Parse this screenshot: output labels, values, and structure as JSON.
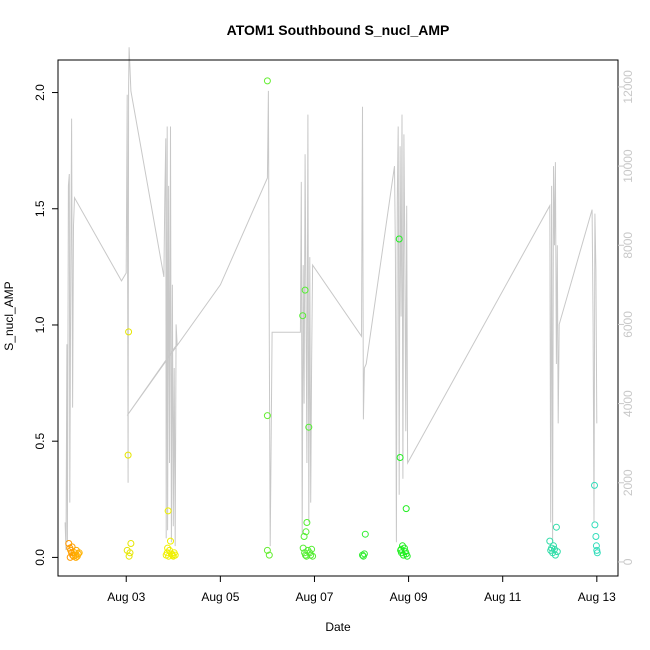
{
  "chart_data": {
    "type": "scatter",
    "title": "ATOM1 Southbound S_nucl_AMP",
    "xlabel": "Date",
    "ylabel": "S_nucl_AMP",
    "x_ticks": [
      "Aug 03",
      "Aug 05",
      "Aug 07",
      "Aug 09",
      "Aug 11",
      "Aug 13"
    ],
    "x_tick_days": [
      3,
      5,
      7,
      9,
      11,
      13
    ],
    "xlim": [
      1.55,
      13.45
    ],
    "ylim": [
      -0.08,
      2.14
    ],
    "y_ticks": [
      0.0,
      0.5,
      1.0,
      1.5,
      2.0
    ],
    "y2lim": [
      -355,
      12680
    ],
    "y2_ticks": [
      0,
      2000,
      4000,
      6000,
      8000,
      10000,
      12000
    ],
    "grid": false,
    "colors": {
      "axis": "#000000",
      "secondary": "#c8c8c8",
      "frame": "#000000"
    },
    "points": [
      {
        "x": 1.78,
        "y": 0.06,
        "c": "#ff9900"
      },
      {
        "x": 1.8,
        "y": 0.04,
        "c": "#ff9900"
      },
      {
        "x": 1.82,
        "y": 0.03,
        "c": "#ffa000"
      },
      {
        "x": 1.84,
        "y": 0.02,
        "c": "#ffa000"
      },
      {
        "x": 1.86,
        "y": 0.01,
        "c": "#ffa000"
      },
      {
        "x": 1.88,
        "y": 0.005,
        "c": "#ffa500"
      },
      {
        "x": 1.9,
        "y": 0.02,
        "c": "#ffa500"
      },
      {
        "x": 1.92,
        "y": 0.01,
        "c": "#ffaa00"
      },
      {
        "x": 1.94,
        "y": 0.03,
        "c": "#ffaa00"
      },
      {
        "x": 1.96,
        "y": 0.005,
        "c": "#ffaf00"
      },
      {
        "x": 1.98,
        "y": 0.015,
        "c": "#ffaf00"
      },
      {
        "x": 2.0,
        "y": 0.02,
        "c": "#ffb400"
      },
      {
        "x": 1.81,
        "y": 0.0,
        "c": "#ff9900"
      },
      {
        "x": 1.85,
        "y": 0.045,
        "c": "#ffa000"
      },
      {
        "x": 1.93,
        "y": 0.0,
        "c": "#ffaa00"
      },
      {
        "x": 3.02,
        "y": 0.03,
        "c": "#e6e600"
      },
      {
        "x": 3.04,
        "y": 0.44,
        "c": "#e6e600"
      },
      {
        "x": 3.05,
        "y": 0.97,
        "c": "#e6e600"
      },
      {
        "x": 3.06,
        "y": 0.005,
        "c": "#e6e600"
      },
      {
        "x": 3.08,
        "y": 0.02,
        "c": "#e6e600"
      },
      {
        "x": 3.1,
        "y": 0.06,
        "c": "#e6e600"
      },
      {
        "x": 3.85,
        "y": 0.01,
        "c": "#f0f000"
      },
      {
        "x": 3.87,
        "y": 0.02,
        "c": "#f0f000"
      },
      {
        "x": 3.89,
        "y": 0.2,
        "c": "#f0f000"
      },
      {
        "x": 3.9,
        "y": 0.005,
        "c": "#f0f000"
      },
      {
        "x": 3.92,
        "y": 0.03,
        "c": "#f0f000"
      },
      {
        "x": 3.94,
        "y": 0.07,
        "c": "#f0f000"
      },
      {
        "x": 3.96,
        "y": 0.015,
        "c": "#f0f000"
      },
      {
        "x": 3.98,
        "y": 0.01,
        "c": "#f0f000"
      },
      {
        "x": 4.0,
        "y": 0.005,
        "c": "#f0f000"
      },
      {
        "x": 4.02,
        "y": 0.02,
        "c": "#f0f000"
      },
      {
        "x": 4.04,
        "y": 0.01,
        "c": "#f0f000"
      },
      {
        "x": 3.88,
        "y": 0.04,
        "c": "#f0f000"
      },
      {
        "x": 6.0,
        "y": 2.05,
        "c": "#66ee33"
      },
      {
        "x": 6.0,
        "y": 0.61,
        "c": "#66ee33"
      },
      {
        "x": 6.0,
        "y": 0.03,
        "c": "#66ee33"
      },
      {
        "x": 6.04,
        "y": 0.01,
        "c": "#66ee33"
      },
      {
        "x": 6.75,
        "y": 1.04,
        "c": "#55ee33"
      },
      {
        "x": 6.8,
        "y": 1.15,
        "c": "#55ee33"
      },
      {
        "x": 6.78,
        "y": 0.09,
        "c": "#55ee33"
      },
      {
        "x": 6.82,
        "y": 0.11,
        "c": "#55ee33"
      },
      {
        "x": 6.84,
        "y": 0.15,
        "c": "#55ee33"
      },
      {
        "x": 6.88,
        "y": 0.56,
        "c": "#55ee33"
      },
      {
        "x": 6.76,
        "y": 0.04,
        "c": "#55ee33"
      },
      {
        "x": 6.79,
        "y": 0.02,
        "c": "#55ee33"
      },
      {
        "x": 6.81,
        "y": 0.01,
        "c": "#55ee33"
      },
      {
        "x": 6.83,
        "y": 0.005,
        "c": "#55ee33"
      },
      {
        "x": 6.86,
        "y": 0.03,
        "c": "#55ee33"
      },
      {
        "x": 6.9,
        "y": 0.02,
        "c": "#55ee33"
      },
      {
        "x": 6.92,
        "y": 0.01,
        "c": "#55ee33"
      },
      {
        "x": 6.94,
        "y": 0.035,
        "c": "#55ee33"
      },
      {
        "x": 6.96,
        "y": 0.005,
        "c": "#55ee33"
      },
      {
        "x": 8.02,
        "y": 0.01,
        "c": "#33ee33"
      },
      {
        "x": 8.04,
        "y": 0.005,
        "c": "#33ee33"
      },
      {
        "x": 8.06,
        "y": 0.015,
        "c": "#33ee33"
      },
      {
        "x": 8.08,
        "y": 0.1,
        "c": "#33ee33"
      },
      {
        "x": 8.8,
        "y": 1.37,
        "c": "#22ee22"
      },
      {
        "x": 8.82,
        "y": 0.43,
        "c": "#22ee22"
      },
      {
        "x": 8.95,
        "y": 0.21,
        "c": "#22ee22"
      },
      {
        "x": 8.83,
        "y": 0.03,
        "c": "#22ee22"
      },
      {
        "x": 8.85,
        "y": 0.02,
        "c": "#22ee22"
      },
      {
        "x": 8.87,
        "y": 0.05,
        "c": "#22ee22"
      },
      {
        "x": 8.89,
        "y": 0.01,
        "c": "#22ee22"
      },
      {
        "x": 8.91,
        "y": 0.04,
        "c": "#22ee22"
      },
      {
        "x": 8.93,
        "y": 0.025,
        "c": "#22ee22"
      },
      {
        "x": 8.95,
        "y": 0.015,
        "c": "#22ee22"
      },
      {
        "x": 8.97,
        "y": 0.005,
        "c": "#22ee22"
      },
      {
        "x": 8.84,
        "y": 0.035,
        "c": "#22ee22"
      },
      {
        "x": 12.0,
        "y": 0.07,
        "c": "#33ddaa"
      },
      {
        "x": 12.02,
        "y": 0.03,
        "c": "#33ddaa"
      },
      {
        "x": 12.04,
        "y": 0.04,
        "c": "#33ddaa"
      },
      {
        "x": 12.06,
        "y": 0.02,
        "c": "#33ddaa"
      },
      {
        "x": 12.08,
        "y": 0.05,
        "c": "#33ddaa"
      },
      {
        "x": 12.1,
        "y": 0.035,
        "c": "#33ddaa"
      },
      {
        "x": 12.12,
        "y": 0.01,
        "c": "#33ddaa"
      },
      {
        "x": 12.14,
        "y": 0.13,
        "c": "#33ddaa"
      },
      {
        "x": 12.16,
        "y": 0.025,
        "c": "#33ddaa"
      },
      {
        "x": 12.95,
        "y": 0.31,
        "c": "#33ddbb"
      },
      {
        "x": 12.96,
        "y": 0.14,
        "c": "#33ddbb"
      },
      {
        "x": 12.98,
        "y": 0.09,
        "c": "#33ddbb"
      },
      {
        "x": 12.99,
        "y": 0.05,
        "c": "#33ddbb"
      },
      {
        "x": 13.0,
        "y": 0.03,
        "c": "#33ddbb"
      },
      {
        "x": 13.01,
        "y": 0.02,
        "c": "#33ddbb"
      }
    ],
    "secondary_line": [
      [
        1.7,
        1000
      ],
      [
        1.72,
        300
      ],
      [
        1.74,
        5500
      ],
      [
        1.75,
        500
      ],
      [
        1.77,
        9500
      ],
      [
        1.79,
        9800
      ],
      [
        1.8,
        1500
      ],
      [
        1.82,
        7000
      ],
      [
        1.84,
        11200
      ],
      [
        1.86,
        3900
      ],
      [
        1.88,
        8500
      ],
      [
        1.9,
        9200
      ],
      [
        2.9,
        7100
      ],
      [
        3.0,
        7300
      ],
      [
        3.02,
        11800
      ],
      [
        3.04,
        2000
      ],
      [
        3.05,
        12000
      ],
      [
        3.06,
        13000
      ],
      [
        3.1,
        11900
      ],
      [
        3.8,
        7200
      ],
      [
        3.82,
        9200
      ],
      [
        3.84,
        10700
      ],
      [
        3.85,
        600
      ],
      [
        3.87,
        11000
      ],
      [
        3.88,
        800
      ],
      [
        3.9,
        9500
      ],
      [
        3.92,
        2500
      ],
      [
        3.94,
        11000
      ],
      [
        3.96,
        500
      ],
      [
        3.98,
        7000
      ],
      [
        4.0,
        900
      ],
      [
        4.02,
        4900
      ],
      [
        4.04,
        400
      ],
      [
        4.06,
        6000
      ],
      [
        4.08,
        5500
      ],
      [
        3.02,
        3700
      ],
      [
        5.0,
        7000
      ],
      [
        6.0,
        9700
      ],
      [
        6.02,
        11900
      ],
      [
        6.04,
        5600
      ],
      [
        6.06,
        400
      ],
      [
        6.1,
        5800
      ],
      [
        6.7,
        5800
      ],
      [
        6.72,
        9600
      ],
      [
        6.74,
        700
      ],
      [
        6.76,
        7500
      ],
      [
        6.78,
        4000
      ],
      [
        6.8,
        10300
      ],
      [
        6.82,
        6500
      ],
      [
        6.84,
        2500
      ],
      [
        6.86,
        11300
      ],
      [
        6.88,
        1000
      ],
      [
        6.9,
        7700
      ],
      [
        6.92,
        1500
      ],
      [
        6.94,
        5000
      ],
      [
        6.96,
        7500
      ],
      [
        8.0,
        5700
      ],
      [
        8.02,
        11500
      ],
      [
        8.04,
        3600
      ],
      [
        8.06,
        4900
      ],
      [
        8.1,
        5000
      ],
      [
        8.7,
        10000
      ],
      [
        8.72,
        7800
      ],
      [
        8.74,
        500
      ],
      [
        8.76,
        9200
      ],
      [
        8.78,
        11000
      ],
      [
        8.8,
        1700
      ],
      [
        8.82,
        10500
      ],
      [
        8.84,
        6200
      ],
      [
        8.86,
        11300
      ],
      [
        8.88,
        2100
      ],
      [
        8.9,
        10800
      ],
      [
        8.92,
        8000
      ],
      [
        8.94,
        3300
      ],
      [
        8.96,
        9000
      ],
      [
        8.98,
        2500
      ],
      [
        12.0,
        9000
      ],
      [
        12.02,
        1000
      ],
      [
        12.04,
        9500
      ],
      [
        12.06,
        500
      ],
      [
        12.08,
        10000
      ],
      [
        12.1,
        8000
      ],
      [
        12.12,
        10100
      ],
      [
        12.14,
        5000
      ],
      [
        12.16,
        8000
      ],
      [
        12.18,
        3500
      ],
      [
        12.2,
        6000
      ],
      [
        12.9,
        8900
      ],
      [
        12.92,
        6000
      ],
      [
        12.94,
        1000
      ],
      [
        12.96,
        8800
      ],
      [
        12.98,
        7400
      ],
      [
        13.0,
        3500
      ]
    ]
  }
}
